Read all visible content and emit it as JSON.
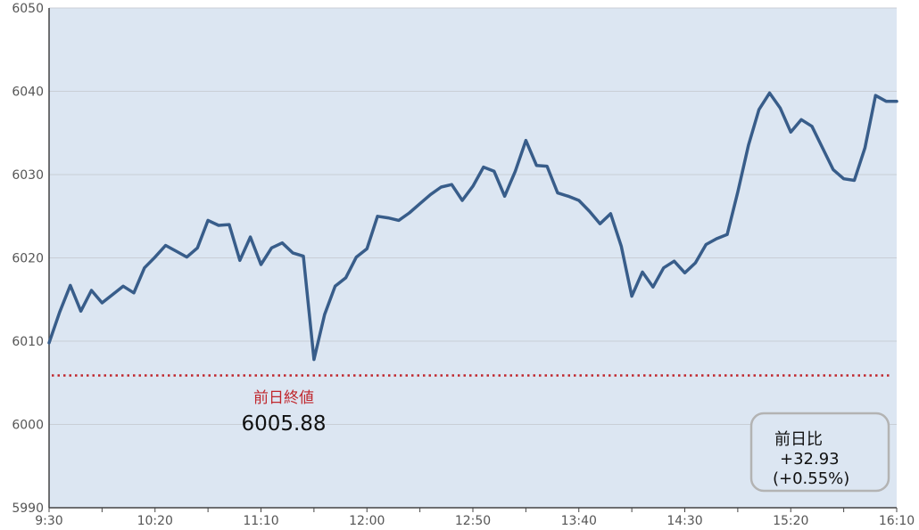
{
  "chart_data": {
    "type": "line",
    "title": "",
    "xlabel": "",
    "ylabel": "",
    "ylim": [
      5990,
      6050
    ],
    "y_ticks": [
      5990,
      6000,
      6010,
      6020,
      6030,
      6040,
      6050
    ],
    "x_range": [
      "9:30",
      "16:10"
    ],
    "x_ticks": [
      "9:30",
      "10:20",
      "11:10",
      "12:00",
      "12:50",
      "13:40",
      "14:30",
      "15:20",
      "16:10"
    ],
    "grid": "horizontal",
    "plot_background": "#dce6f2",
    "line_color": "#385d8a",
    "series": [
      {
        "points": [
          [
            "9:30",
            6009.8
          ],
          [
            "9:35",
            6013.5
          ],
          [
            "9:40",
            6016.7
          ],
          [
            "9:45",
            6013.6
          ],
          [
            "9:50",
            6016.1
          ],
          [
            "9:55",
            6014.6
          ],
          [
            "10:00",
            6015.6
          ],
          [
            "10:05",
            6016.6
          ],
          [
            "10:10",
            6015.8
          ],
          [
            "10:15",
            6018.8
          ],
          [
            "10:20",
            6020.1
          ],
          [
            "10:25",
            6021.5
          ],
          [
            "10:30",
            6020.8
          ],
          [
            "10:35",
            6020.1
          ],
          [
            "10:40",
            6021.2
          ],
          [
            "10:45",
            6024.5
          ],
          [
            "10:50",
            6023.9
          ],
          [
            "10:55",
            6024.0
          ],
          [
            "11:00",
            6019.7
          ],
          [
            "11:05",
            6022.5
          ],
          [
            "11:10",
            6019.2
          ],
          [
            "11:15",
            6021.2
          ],
          [
            "11:20",
            6021.8
          ],
          [
            "11:25",
            6020.6
          ],
          [
            "11:30",
            6020.2
          ],
          [
            "11:35",
            6007.8
          ],
          [
            "11:40",
            6013.2
          ],
          [
            "11:45",
            6016.6
          ],
          [
            "11:50",
            6017.6
          ],
          [
            "11:55",
            6020.1
          ],
          [
            "12:00",
            6021.1
          ],
          [
            "12:05",
            6025.0
          ],
          [
            "12:10",
            6024.8
          ],
          [
            "12:15",
            6024.5
          ],
          [
            "12:20",
            6025.4
          ],
          [
            "12:25",
            6026.5
          ],
          [
            "12:30",
            6027.6
          ],
          [
            "12:35",
            6028.5
          ],
          [
            "12:40",
            6028.8
          ],
          [
            "12:45",
            6026.9
          ],
          [
            "12:50",
            6028.6
          ],
          [
            "12:55",
            6030.9
          ],
          [
            "13:00",
            6030.4
          ],
          [
            "13:05",
            6027.4
          ],
          [
            "13:10",
            6030.4
          ],
          [
            "13:15",
            6034.1
          ],
          [
            "13:20",
            6031.1
          ],
          [
            "13:25",
            6031.0
          ],
          [
            "13:30",
            6027.8
          ],
          [
            "13:35",
            6027.4
          ],
          [
            "13:40",
            6026.9
          ],
          [
            "13:45",
            6025.6
          ],
          [
            "13:50",
            6024.1
          ],
          [
            "13:55",
            6025.3
          ],
          [
            "14:00",
            6021.4
          ],
          [
            "14:05",
            6015.4
          ],
          [
            "14:10",
            6018.3
          ],
          [
            "14:15",
            6016.5
          ],
          [
            "14:20",
            6018.8
          ],
          [
            "14:25",
            6019.6
          ],
          [
            "14:30",
            6018.2
          ],
          [
            "14:35",
            6019.4
          ],
          [
            "14:40",
            6021.6
          ],
          [
            "14:45",
            6022.3
          ],
          [
            "14:50",
            6022.8
          ],
          [
            "14:55",
            6027.9
          ],
          [
            "15:00",
            6033.5
          ],
          [
            "15:05",
            6037.8
          ],
          [
            "15:10",
            6039.8
          ],
          [
            "15:15",
            6038.0
          ],
          [
            "15:20",
            6035.1
          ],
          [
            "15:25",
            6036.6
          ],
          [
            "15:30",
            6035.8
          ],
          [
            "15:35",
            6033.2
          ],
          [
            "15:40",
            6030.6
          ],
          [
            "15:45",
            6029.5
          ],
          [
            "15:50",
            6029.3
          ],
          [
            "15:55",
            6033.2
          ],
          [
            "16:00",
            6039.5
          ],
          [
            "16:05",
            6038.8
          ],
          [
            "16:10",
            6038.8
          ]
        ]
      }
    ],
    "reference_line": {
      "value": 6005.88,
      "style": "dotted",
      "color": "#c0272d",
      "label": "前日終値",
      "value_label": "6005.88"
    },
    "annotation_box": {
      "lines": [
        "前日比",
        "+32.93",
        "(+0.55%)"
      ]
    }
  }
}
